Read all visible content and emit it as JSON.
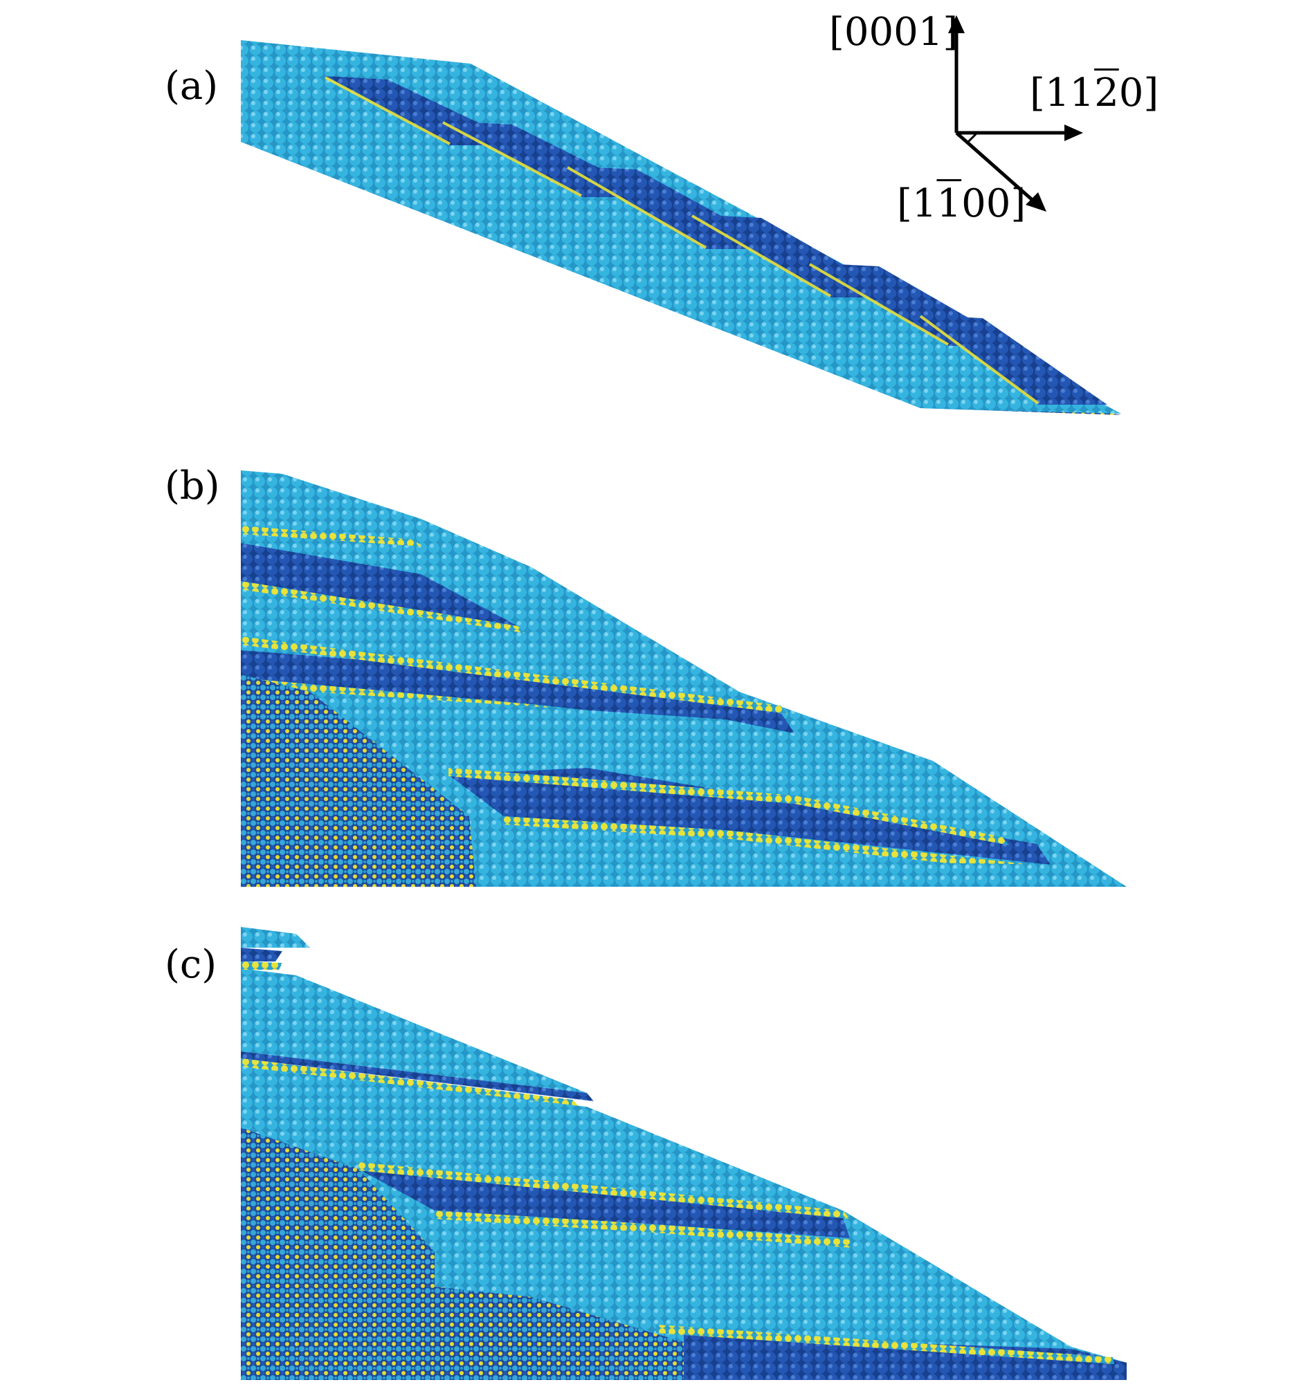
{
  "figure": {
    "panels": [
      {
        "label": "(a)"
      },
      {
        "label": "(b)"
      },
      {
        "label": "(c)"
      }
    ],
    "axes": {
      "vertical": {
        "pre": "[0001]",
        "bar": "",
        "post": ""
      },
      "horizontal": {
        "pre": "[11",
        "bar": "2",
        "post": "0]"
      },
      "diagonal": {
        "pre": "[1",
        "bar": "1",
        "post": "00]"
      }
    },
    "colors": {
      "light_blue": "#2aa8d6",
      "dark_blue": "#1f4fa8",
      "yellow": "#e9e23a",
      "arrow": "#000000"
    },
    "description_icons": [
      "atom-layer-light",
      "atom-layer-dark",
      "interface-atoms-yellow"
    ]
  }
}
